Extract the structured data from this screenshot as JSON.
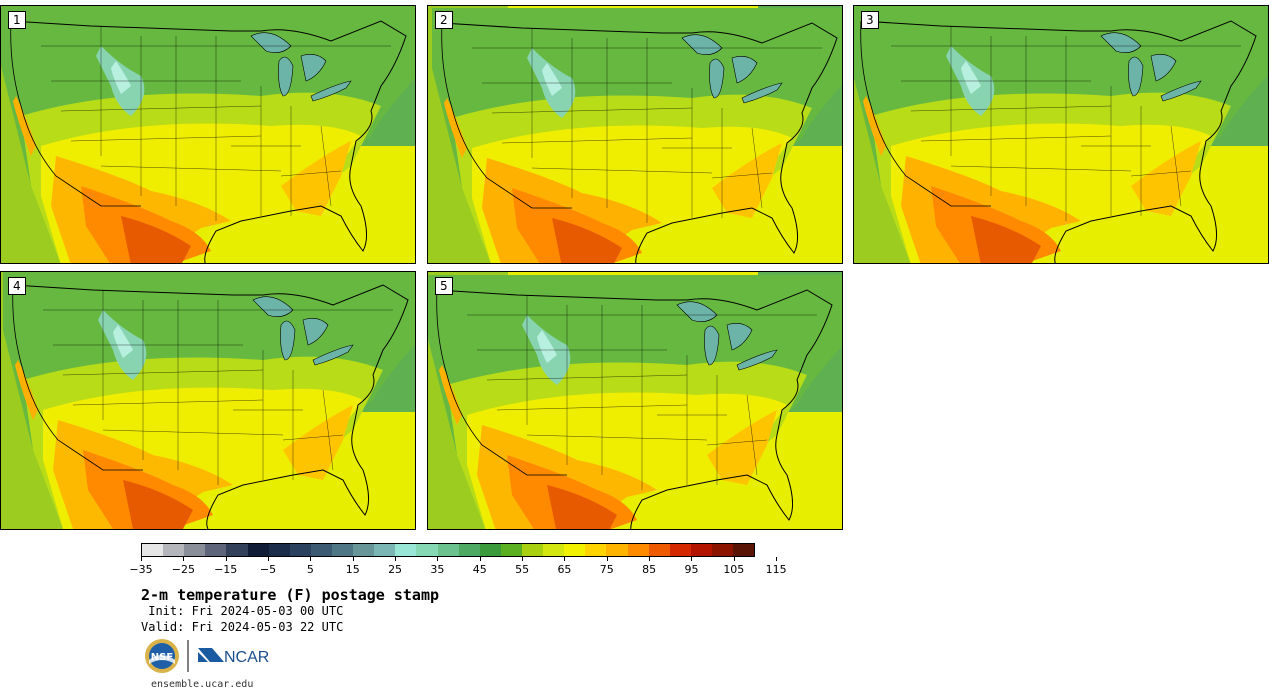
{
  "panels": [
    {
      "label": "1"
    },
    {
      "label": "2"
    },
    {
      "label": "3"
    },
    {
      "label": "4"
    },
    {
      "label": "5"
    }
  ],
  "colorbar": {
    "colors": [
      "#e6e6e6",
      "#b4b6bc",
      "#8a8e99",
      "#5e6479",
      "#33405a",
      "#101c36",
      "#1a2c4a",
      "#2a4260",
      "#3c5a72",
      "#4e7684",
      "#689698",
      "#7cb6b4",
      "#9ae6d6",
      "#86d8b4",
      "#6cc28e",
      "#4eaa62",
      "#3a9a3c",
      "#5ab020",
      "#a8d010",
      "#d4e610",
      "#f2f200",
      "#ffd400",
      "#ffb400",
      "#ff8c00",
      "#ee5a00",
      "#d42800",
      "#b21400",
      "#8a1400",
      "#5a1406"
    ],
    "tick_labels": [
      "−35",
      "−25",
      "−15",
      "−5",
      "5",
      "15",
      "25",
      "35",
      "45",
      "55",
      "65",
      "75",
      "85",
      "95",
      "105",
      "115"
    ]
  },
  "title": "2-m temperature (F) postage stamp",
  "init": " Init: Fri 2024-05-03 00 UTC",
  "valid": "Valid: Fri 2024-05-03 22 UTC",
  "logos": {
    "nsf": "NSF",
    "ncar": "NCAR"
  },
  "url": "ensemble.ucar.edu"
}
